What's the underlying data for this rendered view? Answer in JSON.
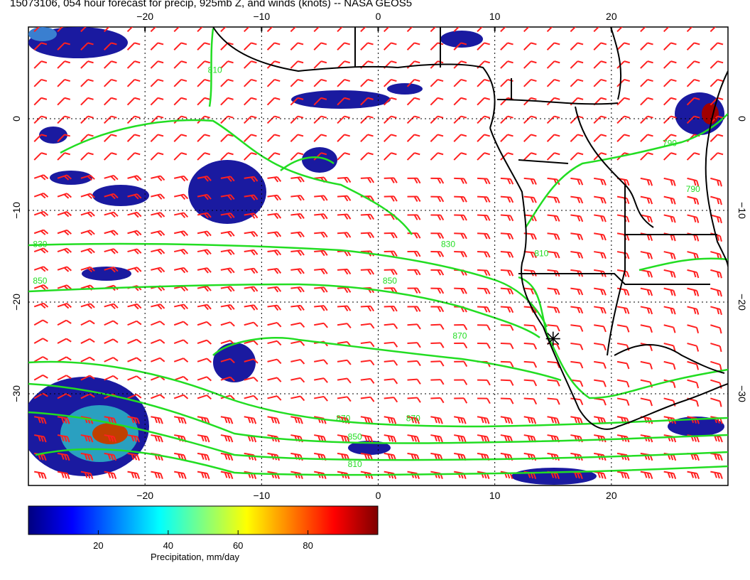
{
  "title": "15073106, 054 hour forecast for precip, 925mb Z, and winds (knots) -- NASA GEOS5",
  "map": {
    "lon_range": [
      -30,
      30
    ],
    "lat_range": [
      -40,
      10
    ],
    "lon_ticks": [
      {
        "value": -20,
        "label": "−20"
      },
      {
        "value": -10,
        "label": "−10"
      },
      {
        "value": 0,
        "label": "0"
      },
      {
        "value": 10,
        "label": "10"
      },
      {
        "value": 20,
        "label": "20"
      }
    ],
    "lat_ticks": [
      {
        "value": 0,
        "label": "0"
      },
      {
        "value": -10,
        "label": "−10"
      },
      {
        "value": -20,
        "label": "−20"
      },
      {
        "value": -30,
        "label": "−30"
      }
    ],
    "grid": "dotted",
    "contour_color": "#22dd22",
    "wind_barb_color": "#ff2020",
    "coast_color": "#000000",
    "marker": {
      "lon": 15,
      "lat": -24
    }
  },
  "contours": [
    {
      "label": "810",
      "lon": 14,
      "lat": -15
    },
    {
      "label": "830",
      "lon": 6,
      "lat": -14
    },
    {
      "label": "830",
      "lon": -29,
      "lat": -14
    },
    {
      "label": "850",
      "lon": 1,
      "lat": -18
    },
    {
      "label": "850",
      "lon": -29,
      "lat": -18
    },
    {
      "label": "870",
      "lon": 7,
      "lat": -24
    },
    {
      "label": "870",
      "lon": -3,
      "lat": -33
    },
    {
      "label": "870",
      "lon": 3,
      "lat": -33
    },
    {
      "label": "850",
      "lon": -2,
      "lat": -35
    },
    {
      "label": "810",
      "lon": -2,
      "lat": -38
    },
    {
      "label": "790",
      "lon": 25,
      "lat": -3
    },
    {
      "label": "790",
      "lon": 27,
      "lat": -8
    },
    {
      "label": "810",
      "lon": -14,
      "lat": 5
    }
  ],
  "colorbar": {
    "label": "Precipitation, mm/day",
    "range": [
      0,
      100
    ],
    "ticks": [
      20,
      40,
      60,
      80
    ],
    "colors": [
      "#00007f",
      "#0000ff",
      "#0080ff",
      "#00ffff",
      "#80ff80",
      "#ffff00",
      "#ff8000",
      "#ff0000",
      "#7f0000"
    ]
  }
}
